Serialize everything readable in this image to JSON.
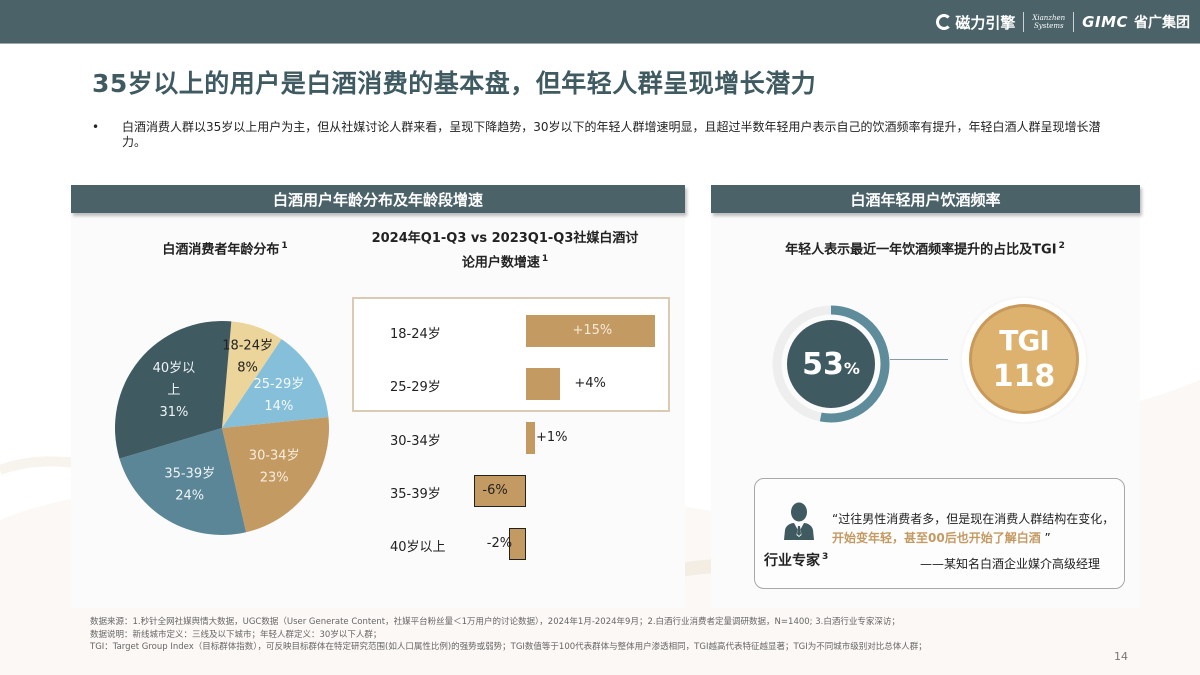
{
  "header": {
    "logos": {
      "cili_cn": "磁力引擎",
      "xianzhen_line1": "Xianzhen",
      "xianzhen_line2": "Systems",
      "gimc": "GIMC",
      "gimc_cn": "省广集团"
    },
    "brand_color": "#4a6268"
  },
  "page": {
    "title": "35岁以上的用户是白酒消费的基本盘，但年轻人群呈现增长潜力",
    "bullet_marker": "•",
    "bullet_text": "白酒消费人群以35岁以上用户为主，但从社媒讨论人群来看，呈现下降趋势，30岁以下的年轻人群增速明显，且超过半数年轻用户表示自己的饮酒频率有提升，年轻白酒人群呈现增长潜力。",
    "page_number": "14"
  },
  "left_panel": {
    "header": "白酒用户年龄分布及年龄段增速",
    "pie_title": "白酒消费者年龄分布",
    "pie_title_note": "1",
    "bar_title_line1": "2024年Q1-Q3 vs 2023Q1-Q3社媒白酒讨",
    "bar_title_line2": "论用户数增速",
    "bar_title_note": "1"
  },
  "right_panel": {
    "header": "白酒年轻用户饮酒频率",
    "subtitle": "年轻人表示最近一年饮酒频率提升的占比及TGI",
    "subtitle_note": "2",
    "ring_value": "53",
    "ring_unit": "%",
    "tgi_label": "TGI",
    "tgi_value": "118",
    "expert": {
      "icon": "person-suit-icon",
      "label": "行业专家",
      "note": "3",
      "quote_part1": "“过往男性消费者多，但是现在消费人群结构在变化，",
      "quote_highlight": "开始变年轻，甚至00后也开始了解白酒",
      "quote_part2": " ”",
      "source": "——某知名白酒企业媒介高级经理"
    }
  },
  "footnotes": {
    "line1": "数据来源：1.秒针全网社媒舆情大数据，UGC数据（User Generate Content，社媒平台粉丝量＜1万用户的讨论数据），2024年1月-2024年9月；2.白酒行业消费者定量调研数据，N=1400; 3.白酒行业专家深访；",
    "line2": "数据说明：新线城市定义：三线及以下城市；年轻人群定义：30岁以下人群；",
    "line3": "TGI：Target Group Index（目标群体指数），可反映目标群体在特定研究范围(如人口属性比例)的强势或弱势；TGI数值等于100代表群体与整体用户渗透相同，TGI越高代表特征越显著；TGI为不同城市级别对比总体人群；"
  },
  "chart_data": [
    {
      "type": "pie",
      "title": "白酒消费者年龄分布",
      "categories": [
        "18-24岁",
        "25-29岁",
        "30-34岁",
        "35-39岁",
        "40岁以上"
      ],
      "values": [
        8,
        14,
        23,
        24,
        31
      ],
      "labels": [
        "18-24岁\n8%",
        "25-29岁\n14%",
        "30-34岁\n23%",
        "35-39岁\n24%",
        "40岁以\n上\n31%"
      ],
      "colors": [
        "#ecd59b",
        "#86bfd9",
        "#c49a63",
        "#5a8697",
        "#3f5a61"
      ],
      "unit": "%"
    },
    {
      "type": "bar",
      "orientation": "horizontal",
      "title": "2024年Q1-Q3 vs 2023Q1-Q3社媒白酒讨论用户数增速",
      "categories": [
        "18-24岁",
        "25-29岁",
        "30-34岁",
        "35-39岁",
        "40岁以上"
      ],
      "values": [
        15,
        4,
        1,
        -6,
        -2
      ],
      "value_labels": [
        "+15%",
        "+4%",
        "+1%",
        "-6%",
        "-2%"
      ],
      "highlighted": [
        "18-24岁",
        "25-29岁"
      ],
      "color": "#c49a63",
      "unit": "%"
    },
    {
      "type": "donut",
      "title": "年轻人表示最近一年饮酒频率提升的占比及TGI",
      "values": [
        53
      ],
      "value_labels": [
        "53%"
      ],
      "tgi": 118
    }
  ]
}
